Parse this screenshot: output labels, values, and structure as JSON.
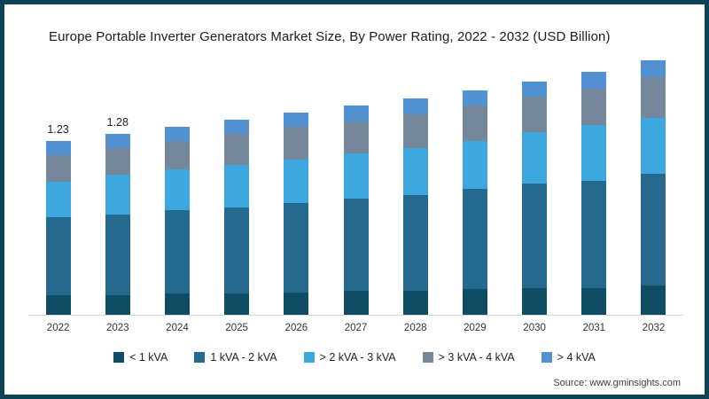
{
  "title": "Europe Portable Inverter Generators Market Size, By Power Rating, 2022 - 2032 (USD Billion)",
  "source": "Source: www.gminsights.com",
  "frame": {
    "border_color": "#0c4156",
    "axis_color": "#d9d9d9",
    "background": "#ffffff"
  },
  "chart_data": {
    "type": "bar",
    "stacked": true,
    "title": "Europe Portable Inverter Generators Market Size, By Power Rating, 2022 - 2032 (USD Billion)",
    "xlabel": "",
    "ylabel": "USD Billion",
    "ylim": [
      0,
      1.85
    ],
    "grid": false,
    "legend_position": "bottom",
    "categories": [
      "2022",
      "2023",
      "2024",
      "2025",
      "2026",
      "2027",
      "2028",
      "2029",
      "2030",
      "2031",
      "2032"
    ],
    "series": [
      {
        "name": "< 1 kVA",
        "color": "#0e4d64",
        "values": [
          0.14,
          0.14,
          0.15,
          0.15,
          0.16,
          0.17,
          0.17,
          0.18,
          0.19,
          0.19,
          0.21
        ]
      },
      {
        "name": "1 kVA - 2 kVA",
        "color": "#26698e",
        "values": [
          0.55,
          0.57,
          0.59,
          0.61,
          0.63,
          0.65,
          0.68,
          0.71,
          0.74,
          0.76,
          0.79
        ]
      },
      {
        "name": "> 2 kVA - 3 kVA",
        "color": "#3da7e0",
        "values": [
          0.25,
          0.28,
          0.29,
          0.3,
          0.31,
          0.32,
          0.33,
          0.34,
          0.36,
          0.39,
          0.39
        ]
      },
      {
        "name": "> 3 kVA - 4 kVA",
        "color": "#75879a",
        "values": [
          0.19,
          0.19,
          0.2,
          0.22,
          0.23,
          0.23,
          0.24,
          0.25,
          0.25,
          0.26,
          0.29
        ]
      },
      {
        "name": "> 4 kVA",
        "color": "#5191d2",
        "values": [
          0.1,
          0.1,
          0.1,
          0.1,
          0.1,
          0.11,
          0.11,
          0.11,
          0.11,
          0.12,
          0.12
        ]
      }
    ],
    "totals": [
      1.23,
      1.28,
      1.33,
      1.38,
      1.43,
      1.48,
      1.53,
      1.59,
      1.65,
      1.72,
      1.8
    ],
    "value_labels_shown": {
      "2022": "1.23",
      "2023": "1.28"
    }
  }
}
